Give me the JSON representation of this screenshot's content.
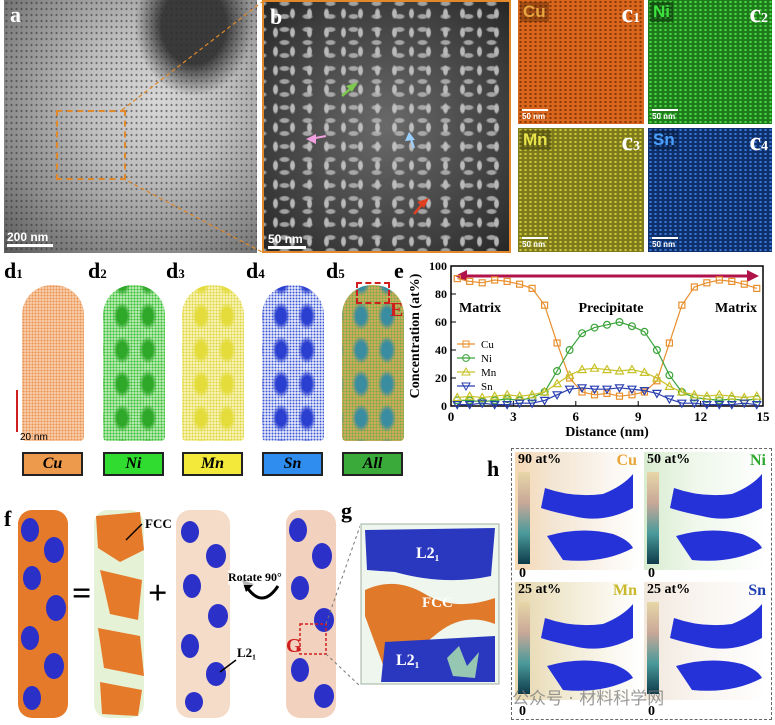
{
  "labels": {
    "a": "a",
    "b": "b",
    "c1": {
      "letter": "c",
      "sub": "1"
    },
    "c2": {
      "letter": "c",
      "sub": "2"
    },
    "c3": {
      "letter": "c",
      "sub": "3"
    },
    "c4": {
      "letter": "c",
      "sub": "4"
    },
    "d1": {
      "letter": "d",
      "sub": "1"
    },
    "d2": {
      "letter": "d",
      "sub": "2"
    },
    "d3": {
      "letter": "d",
      "sub": "3"
    },
    "d4": {
      "letter": "d",
      "sub": "4"
    },
    "d5": {
      "letter": "d",
      "sub": "5"
    },
    "e": "e",
    "E": "E",
    "f": "f",
    "g": "g",
    "h": "h",
    "G": "G"
  },
  "scalebars": {
    "a": "200 nm",
    "b": "50 nm",
    "c": "50 nm",
    "d": "20 nm"
  },
  "eds_maps": [
    {
      "element": "Cu",
      "color": "#d9661c",
      "label_color": "#e7a640"
    },
    {
      "element": "Ni",
      "color": "#2f9a28",
      "label_color": "#3ee23e"
    },
    {
      "element": "Mn",
      "color": "#9b9b25",
      "label_color": "#e8e34a"
    },
    {
      "element": "Sn",
      "color": "#1c4da0",
      "label_color": "#4aa0ff"
    }
  ],
  "apt_legend": [
    {
      "label": "Cu",
      "bg": "#ee9a4d"
    },
    {
      "label": "Ni",
      "bg": "#2fdc2f"
    },
    {
      "label": "Mn",
      "bg": "#f2e93a"
    },
    {
      "label": "Sn",
      "bg": "#2f8df0"
    },
    {
      "label": "All",
      "bg": "#3aaa3a"
    }
  ],
  "panel_f": {
    "fcc": "FCC",
    "l21": "L2₁",
    "rotate": "Rotate 90°",
    "equals": "=",
    "plus": "+"
  },
  "panel_g": {
    "l21_top": "L2₁",
    "fcc": "FCC",
    "l21_bottom": "L2₁"
  },
  "panel_h": [
    {
      "element": "Cu",
      "max": "90 at%",
      "min": "0",
      "color": "#e8a63a"
    },
    {
      "element": "Ni",
      "max": "50 at%",
      "min": "0",
      "color": "#2faa2f"
    },
    {
      "element": "Mn",
      "max": "25 at%",
      "min": "0",
      "color": "#c9b82a"
    },
    {
      "element": "Sn",
      "max": "25 at%",
      "min": "0",
      "color": "#1f3fb0"
    }
  ],
  "watermark": "公众号 · 材料科学网",
  "chart_data": {
    "type": "line",
    "xlabel": "Distance (nm)",
    "ylabel": "Concentration (at%)",
    "xlim": [
      0,
      15
    ],
    "ylim": [
      0,
      100
    ],
    "xticks": [
      0,
      3,
      6,
      9,
      12,
      15
    ],
    "yticks": [
      0,
      20,
      40,
      60,
      80,
      100
    ],
    "annotations": [
      "Matrix",
      "Precipitate",
      "Matrix"
    ],
    "legend_position": "left",
    "series": [
      {
        "name": "Cu",
        "color": "#e8902f",
        "marker": "square",
        "x": [
          0.3,
          0.9,
          1.5,
          2.1,
          2.7,
          3.3,
          3.9,
          4.5,
          5.1,
          5.7,
          6.3,
          6.9,
          7.5,
          8.1,
          8.7,
          9.3,
          9.9,
          10.5,
          11.1,
          11.7,
          12.3,
          12.9,
          13.5,
          14.1,
          14.7
        ],
        "y": [
          91,
          89,
          88,
          90,
          89,
          87,
          84,
          72,
          45,
          20,
          10,
          8,
          9,
          7,
          8,
          10,
          18,
          45,
          72,
          85,
          88,
          90,
          89,
          87,
          84
        ]
      },
      {
        "name": "Ni",
        "color": "#3aa33a",
        "marker": "circle",
        "x": [
          0.3,
          0.9,
          1.5,
          2.1,
          2.7,
          3.3,
          3.9,
          4.5,
          5.1,
          5.7,
          6.3,
          6.9,
          7.5,
          8.1,
          8.7,
          9.3,
          9.9,
          10.5,
          11.1,
          11.7,
          12.3,
          12.9,
          13.5,
          14.1,
          14.7
        ],
        "y": [
          4,
          4,
          3,
          4,
          5,
          4,
          6,
          10,
          25,
          40,
          52,
          56,
          58,
          60,
          57,
          53,
          40,
          22,
          10,
          6,
          5,
          4,
          5,
          4,
          5
        ]
      },
      {
        "name": "Mn",
        "color": "#c8c22a",
        "marker": "triangle-up",
        "x": [
          0.3,
          0.9,
          1.5,
          2.1,
          2.7,
          3.3,
          3.9,
          4.5,
          5.1,
          5.7,
          6.3,
          6.9,
          7.5,
          8.1,
          8.7,
          9.3,
          9.9,
          10.5,
          11.1,
          11.7,
          12.3,
          12.9,
          13.5,
          14.1,
          14.7
        ],
        "y": [
          6,
          7,
          6,
          7,
          8,
          7,
          8,
          10,
          16,
          22,
          26,
          27,
          26,
          25,
          26,
          24,
          20,
          14,
          10,
          8,
          7,
          8,
          7,
          6,
          7
        ]
      },
      {
        "name": "Sn",
        "color": "#2a3fb0",
        "marker": "triangle-down",
        "x": [
          0.3,
          0.9,
          1.5,
          2.1,
          2.7,
          3.3,
          3.9,
          4.5,
          5.1,
          5.7,
          6.3,
          6.9,
          7.5,
          8.1,
          8.7,
          9.3,
          9.9,
          10.5,
          11.1,
          11.7,
          12.3,
          12.9,
          13.5,
          14.1,
          14.7
        ],
        "y": [
          1,
          1,
          2,
          1,
          1,
          2,
          2,
          4,
          8,
          12,
          13,
          12,
          12,
          13,
          12,
          11,
          9,
          5,
          2,
          2,
          1,
          1,
          1,
          2,
          1
        ]
      }
    ]
  }
}
